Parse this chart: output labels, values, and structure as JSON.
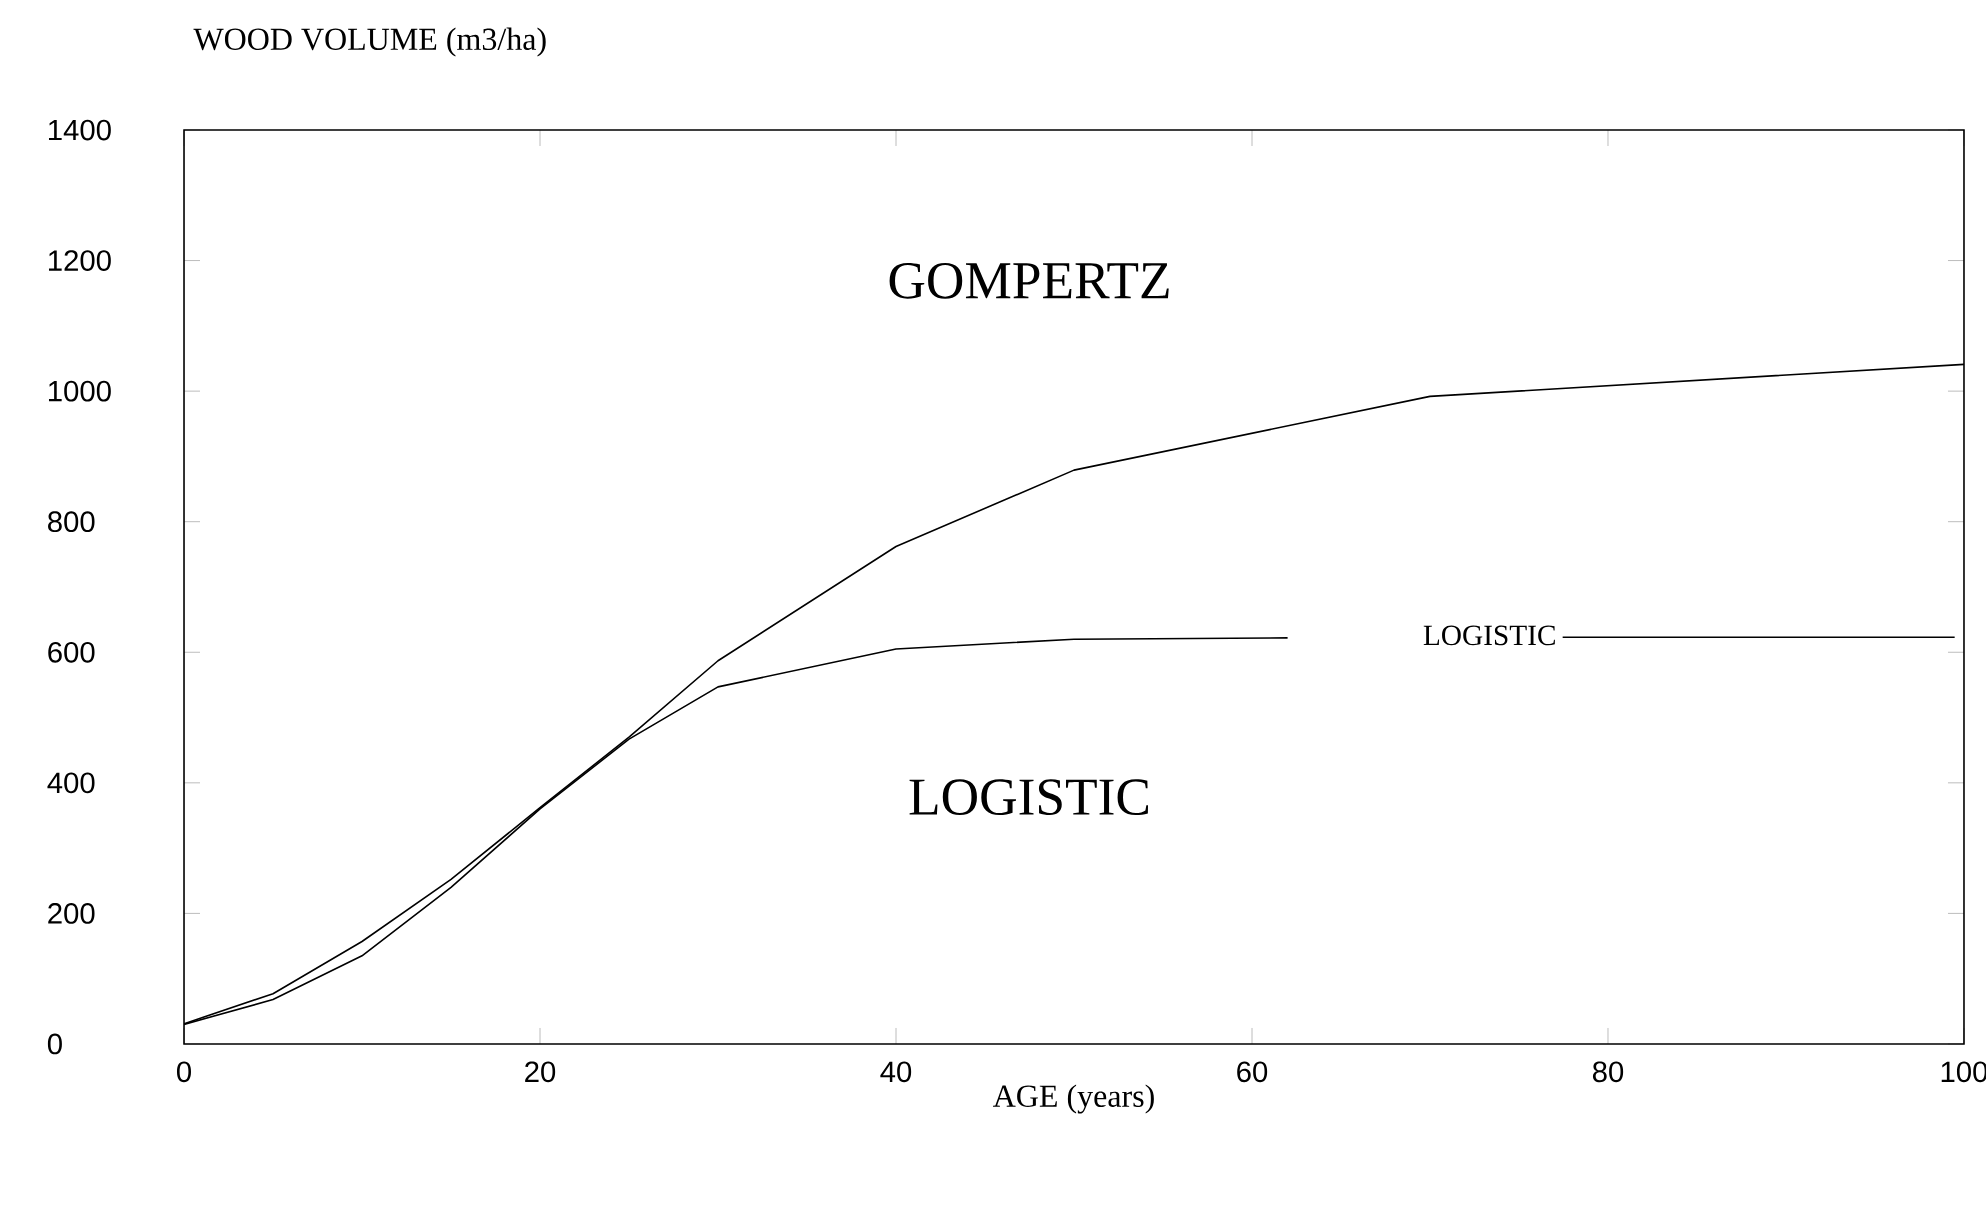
{
  "chart_data": {
    "type": "line",
    "xlabel": "AGE (years)",
    "ylabel": "WOOD VOLUME (m3/ha)",
    "xlim": [
      0,
      100
    ],
    "ylim": [
      0,
      1400
    ],
    "xticks": [
      0,
      20,
      40,
      60,
      80,
      100
    ],
    "yticks": [
      0,
      200,
      400,
      600,
      800,
      1000,
      1200,
      1400
    ],
    "grid": false,
    "legend": "right",
    "marker": "none",
    "line_style": "solid",
    "series": [
      {
        "color": "#000000",
        "x": [
          0,
          5,
          10,
          15,
          20,
          25,
          30,
          40,
          50,
          70,
          100
        ],
        "values": [
          31,
          77,
          157,
          252,
          362,
          470,
          587,
          762,
          879,
          992,
          1041
        ]
      },
      {
        "name": "LOGISTIC",
        "color": "#000000",
        "x": [
          0,
          5,
          10,
          15,
          20,
          25,
          30,
          40,
          50,
          62
        ],
        "values": [
          30,
          68,
          135,
          240,
          360,
          467,
          547,
          605,
          620,
          622
        ]
      }
    ],
    "annotations": [
      "GOMPERTZ",
      "LOGISTIC"
    ]
  }
}
